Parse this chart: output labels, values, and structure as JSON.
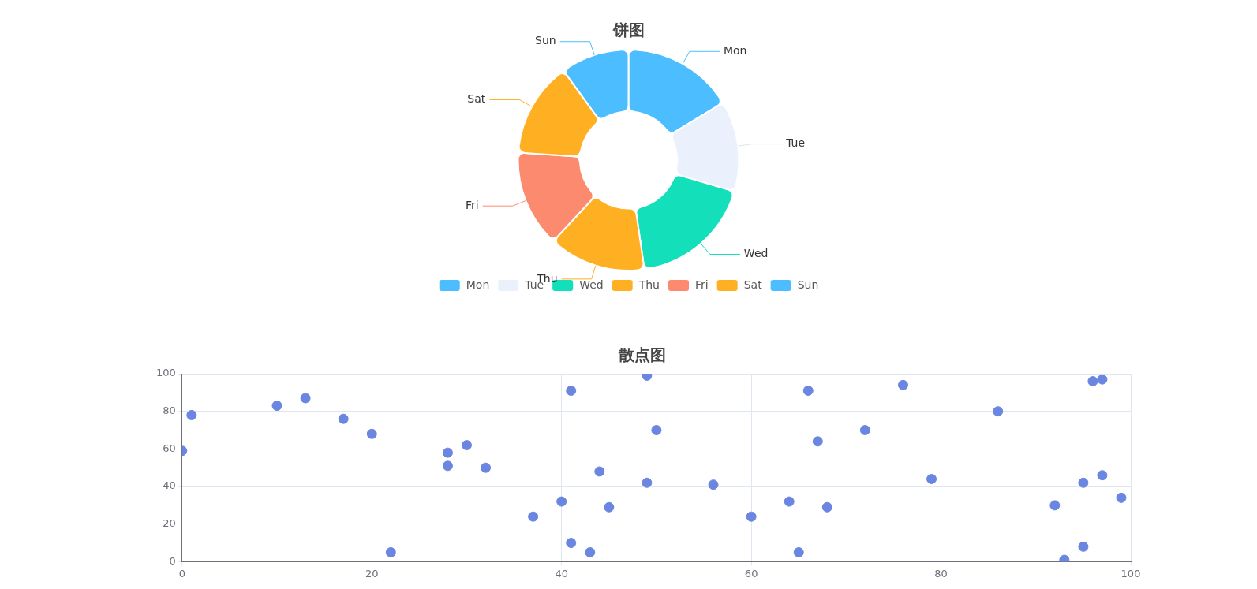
{
  "chart_data": [
    {
      "type": "donut",
      "title": "饼图",
      "categories": [
        "Mon",
        "Tue",
        "Wed",
        "Thu",
        "Fri",
        "Sat",
        "Sun"
      ],
      "values": [
        16.3,
        13.3,
        18.1,
        14.2,
        14.2,
        13.9,
        10.0
      ],
      "colors": [
        "#4cbdfe",
        "#eaf1fd",
        "#14dfbb",
        "#ffb022",
        "#fb8a6e",
        "#ffb022",
        "#4cbdfe"
      ],
      "legend": "bottom"
    },
    {
      "type": "scatter",
      "title": "散点图",
      "x": [
        0,
        1,
        10,
        13,
        17,
        20,
        22,
        28,
        28,
        30,
        32,
        37,
        40,
        41,
        41,
        43,
        44,
        45,
        49,
        49,
        50,
        56,
        60,
        64,
        65,
        66,
        67,
        68,
        72,
        76,
        79,
        86,
        92,
        93,
        95,
        95,
        96,
        97,
        97,
        99
      ],
      "values": [
        59,
        78,
        83,
        87,
        76,
        68,
        5,
        58,
        51,
        62,
        50,
        24,
        32,
        91,
        10,
        5,
        48,
        29,
        99,
        42,
        70,
        41,
        24,
        32,
        5,
        91,
        64,
        29,
        70,
        94,
        44,
        80,
        30,
        1,
        42,
        8,
        96,
        97,
        46,
        34
      ],
      "color": "#6b86e0",
      "marker": "circle",
      "xlim": [
        0,
        100
      ],
      "ylim": [
        0,
        100
      ],
      "xticks": [
        0,
        20,
        40,
        60,
        80,
        100
      ],
      "yticks": [
        0,
        20,
        40,
        60,
        80,
        100
      ],
      "grid": true,
      "legend": false
    }
  ]
}
